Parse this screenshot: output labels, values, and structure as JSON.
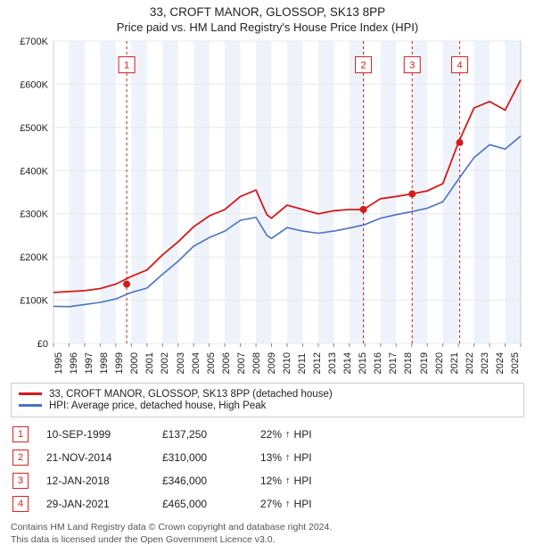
{
  "title": "33, CROFT MANOR, GLOSSOP, SK13 8PP",
  "subtitle": "Price paid vs. HM Land Registry's House Price Index (HPI)",
  "chart": {
    "type": "line",
    "background_color": "#ffffff",
    "plot_border_color": "#cccccc",
    "grid_color": "#e8e8e8",
    "shade_color": "#eef3fb",
    "font_size_axis": 11,
    "y": {
      "min": 0,
      "max": 700000,
      "tick_step": 100000,
      "ticks": [
        "£0",
        "£100K",
        "£200K",
        "£300K",
        "£400K",
        "£500K",
        "£600K",
        "£700K"
      ]
    },
    "x": {
      "min": 1995,
      "max": 2025,
      "ticks": [
        "1995",
        "1996",
        "1997",
        "1998",
        "1999",
        "2000",
        "2001",
        "2002",
        "2003",
        "2004",
        "2005",
        "2006",
        "2007",
        "2008",
        "2009",
        "2010",
        "2011",
        "2012",
        "2013",
        "2014",
        "2015",
        "2016",
        "2017",
        "2018",
        "2019",
        "2020",
        "2021",
        "2022",
        "2023",
        "2024",
        "2025"
      ]
    },
    "series": [
      {
        "name": "33, CROFT MANOR, GLOSSOP, SK13 8PP (detached house)",
        "color": "#d61a1a",
        "line_width": 1.8,
        "points": [
          [
            1995,
            118
          ],
          [
            1996,
            120
          ],
          [
            1997,
            122
          ],
          [
            1998,
            127
          ],
          [
            1999,
            137.25
          ],
          [
            2000,
            155
          ],
          [
            2001,
            170
          ],
          [
            2002,
            205
          ],
          [
            2003,
            235
          ],
          [
            2004,
            270
          ],
          [
            2005,
            295
          ],
          [
            2006,
            310
          ],
          [
            2007,
            340
          ],
          [
            2008,
            355
          ],
          [
            2008.7,
            298
          ],
          [
            2009,
            290
          ],
          [
            2010,
            320
          ],
          [
            2011,
            310
          ],
          [
            2012,
            300
          ],
          [
            2013,
            307
          ],
          [
            2014,
            310
          ],
          [
            2014.9,
            310
          ],
          [
            2016,
            335
          ],
          [
            2017,
            340
          ],
          [
            2018,
            346
          ],
          [
            2019,
            353
          ],
          [
            2020,
            370
          ],
          [
            2021,
            465
          ],
          [
            2021.5,
            505
          ],
          [
            2022,
            545
          ],
          [
            2023,
            560
          ],
          [
            2024,
            540
          ],
          [
            2025,
            610
          ]
        ]
      },
      {
        "name": "HPI: Average price, detached house, High Peak",
        "color": "#4a72c4",
        "line_width": 1.6,
        "points": [
          [
            1995,
            86
          ],
          [
            1996,
            85
          ],
          [
            1997,
            90
          ],
          [
            1998,
            95
          ],
          [
            1999,
            103
          ],
          [
            2000,
            118
          ],
          [
            2001,
            128
          ],
          [
            2002,
            160
          ],
          [
            2003,
            190
          ],
          [
            2004,
            225
          ],
          [
            2005,
            245
          ],
          [
            2006,
            260
          ],
          [
            2007,
            285
          ],
          [
            2008,
            292
          ],
          [
            2008.7,
            250
          ],
          [
            2009,
            243
          ],
          [
            2010,
            268
          ],
          [
            2011,
            260
          ],
          [
            2012,
            255
          ],
          [
            2013,
            260
          ],
          [
            2014,
            267
          ],
          [
            2015,
            275
          ],
          [
            2016,
            290
          ],
          [
            2017,
            298
          ],
          [
            2018,
            305
          ],
          [
            2019,
            313
          ],
          [
            2020,
            328
          ],
          [
            2021,
            380
          ],
          [
            2022,
            430
          ],
          [
            2023,
            460
          ],
          [
            2024,
            450
          ],
          [
            2025,
            480
          ]
        ]
      }
    ],
    "markers": {
      "color": "#d61a1a",
      "radius": 4,
      "items": [
        {
          "n": 1,
          "x": 1999.7,
          "y": 137.25
        },
        {
          "n": 2,
          "x": 2014.9,
          "y": 310
        },
        {
          "n": 3,
          "x": 2018.03,
          "y": 346
        },
        {
          "n": 4,
          "x": 2021.08,
          "y": 465
        }
      ]
    },
    "marker_labels": {
      "border_color": "#d61a1a",
      "text_color": "#d61a1a",
      "font_size": 11,
      "y_in_thousands": 645
    }
  },
  "legend": {
    "items": [
      {
        "color": "#d61a1a",
        "label": "33, CROFT MANOR, GLOSSOP, SK13 8PP (detached house)"
      },
      {
        "color": "#4a72c4",
        "label": "HPI: Average price, detached house, High Peak"
      }
    ]
  },
  "table": {
    "rows": [
      {
        "n": "1",
        "date": "10-SEP-1999",
        "price": "£137,250",
        "delta": "22%",
        "vs": "HPI"
      },
      {
        "n": "2",
        "date": "21-NOV-2014",
        "price": "£310,000",
        "delta": "13%",
        "vs": "HPI"
      },
      {
        "n": "3",
        "date": "12-JAN-2018",
        "price": "£346,000",
        "delta": "12%",
        "vs": "HPI"
      },
      {
        "n": "4",
        "date": "29-JAN-2021",
        "price": "£465,000",
        "delta": "27%",
        "vs": "HPI"
      }
    ]
  },
  "footer": {
    "line1": "Contains HM Land Registry data © Crown copyright and database right 2024.",
    "line2": "This data is licensed under the Open Government Licence v3.0."
  }
}
